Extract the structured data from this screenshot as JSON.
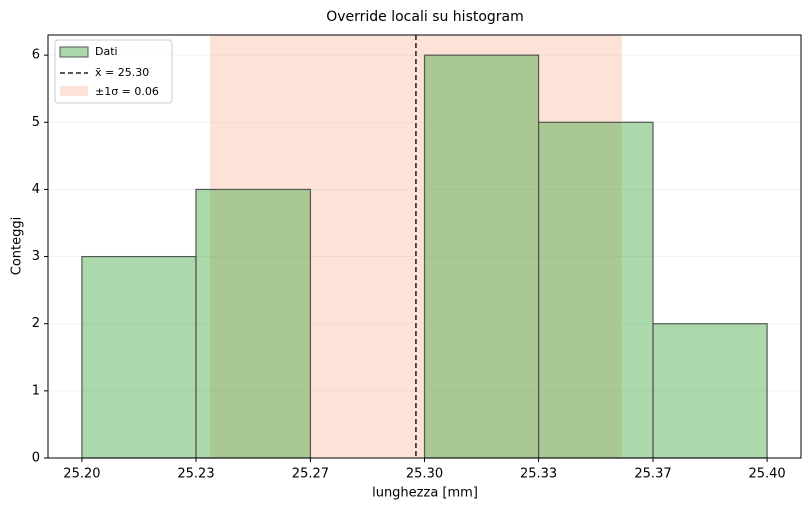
{
  "chart_data": {
    "type": "histogram",
    "title": "Override locali su histogram",
    "xlabel": "lunghezza [mm]",
    "ylabel": "Conteggi",
    "name": "Dati",
    "color": "#2ca02c",
    "alpha": 0.4,
    "edgecolor": "#555555",
    "bins": [
      25.2,
      25.2333,
      25.2667,
      25.3,
      25.3333,
      25.3667,
      25.4
    ],
    "values": [
      3,
      4,
      0,
      6,
      5,
      2
    ],
    "mean": {
      "value": 25.2975,
      "label": "x̄ = 25.30",
      "color": "#222222"
    },
    "sigma": {
      "value": 0.0601,
      "label": "±1σ = 0.06",
      "color": "#f7a27a",
      "alpha": 0.3
    },
    "xlim": [
      25.1901,
      25.4099
    ],
    "ylim": [
      0,
      6.3
    ],
    "xticks": [
      {
        "value": 25.2,
        "label": "25.20"
      },
      {
        "value": 25.2333,
        "label": "25.23"
      },
      {
        "value": 25.2667,
        "label": "25.27"
      },
      {
        "value": 25.3,
        "label": "25.30"
      },
      {
        "value": 25.3333,
        "label": "25.33"
      },
      {
        "value": 25.3667,
        "label": "25.37"
      },
      {
        "value": 25.4,
        "label": "25.40"
      }
    ],
    "yticks": [
      0,
      1,
      2,
      3,
      4,
      5,
      6
    ],
    "grid": true,
    "legend": "upper left"
  }
}
